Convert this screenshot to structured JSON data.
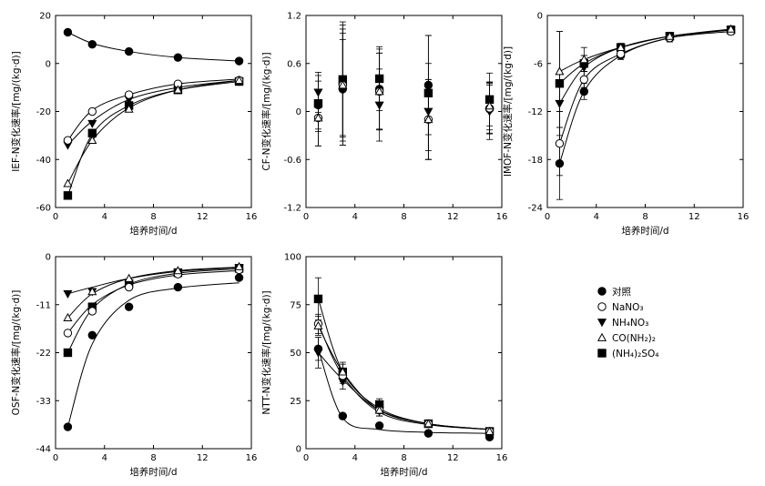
{
  "chart_data": [
    {
      "id": "p1",
      "type": "scatter",
      "xlabel": "培养时间/d",
      "ylabel": "IEF-N变化速率/[mg/(kg·d)]",
      "xlim": [
        0,
        16
      ],
      "ylim": [
        -60,
        20
      ],
      "xticks": [
        "0",
        "4",
        "8",
        "12",
        "16"
      ],
      "yticks": [
        "-60",
        "-40",
        "-20",
        "0",
        "20"
      ],
      "x": [
        1,
        3,
        6,
        10,
        15
      ],
      "series": [
        {
          "name": "对照",
          "marker": "circle-filled",
          "values": [
            13,
            8,
            5,
            2.5,
            1
          ]
        },
        {
          "name": "NaNO3",
          "marker": "circle-open",
          "values": [
            -32,
            -20,
            -13,
            -8.5,
            -7
          ]
        },
        {
          "name": "NH4NO3",
          "marker": "triangle-down-filled",
          "values": [
            -34,
            -25,
            -15,
            -10,
            -7.5
          ]
        },
        {
          "name": "CO(NH2)2",
          "marker": "triangle-up-open",
          "values": [
            -50,
            -32,
            -19,
            -11,
            -7
          ]
        },
        {
          "name": "(NH4)2SO4",
          "marker": "square-filled",
          "values": [
            -55,
            -29,
            -17.5,
            -11,
            -7.5
          ]
        }
      ],
      "fits": [
        {
          "values": [
            13,
            8.4,
            5,
            2.5,
            1
          ]
        },
        {
          "values": [
            -32,
            -19.5,
            -13,
            -8.5,
            -6.5
          ]
        },
        {
          "values": [
            -34,
            -24,
            -15,
            -10,
            -7
          ]
        },
        {
          "values": [
            -50,
            -32,
            -18.5,
            -11,
            -7
          ]
        },
        {
          "values": [
            -55,
            -29.5,
            -17.5,
            -11,
            -7.5
          ]
        }
      ]
    },
    {
      "id": "p2",
      "type": "scatter",
      "xlabel": "",
      "ylabel": "CF-N变化速率/[mg/(kg·d)]",
      "xlim": [
        0,
        16
      ],
      "ylim": [
        -1.2,
        1.2
      ],
      "xticks": [
        "0",
        "4",
        "8",
        "12",
        "16"
      ],
      "yticks": [
        "-1.2",
        "-0.6",
        "0",
        "0.6",
        "1.2"
      ],
      "x": [
        1,
        3,
        6,
        10,
        15
      ],
      "series": [
        {
          "name": "对照",
          "marker": "circle-filled",
          "values": [
            0.08,
            0.28,
            0.28,
            0.33,
            0.03
          ],
          "err": [
            0.3,
            0.7,
            0.5,
            0.62,
            0.3
          ]
        },
        {
          "name": "NaNO3",
          "marker": "circle-open",
          "values": [
            -0.08,
            0.33,
            0.25,
            -0.1,
            0.04
          ],
          "err": [
            0.35,
            0.7,
            0.48,
            0.5,
            0.32
          ]
        },
        {
          "name": "NH4NO3",
          "marker": "triangle-down-filled",
          "values": [
            0.24,
            0.3,
            0.08,
            0,
            0
          ],
          "err": [
            0.25,
            0.6,
            0.45,
            0.6,
            0.35
          ]
        },
        {
          "name": "CO(NH2)2",
          "marker": "triangle-up-open",
          "values": [
            -0.08,
            0.33,
            0.25,
            -0.1,
            0.07
          ],
          "err": [
            0.35,
            0.75,
            0.48,
            0.5,
            0.3
          ]
        },
        {
          "name": "(NH4)2SO4",
          "marker": "square-filled",
          "values": [
            0.1,
            0.4,
            0.41,
            0.23,
            0.15
          ],
          "err": [
            0.35,
            0.72,
            0.4,
            0.72,
            0.33
          ]
        }
      ]
    },
    {
      "id": "p3",
      "type": "scatter",
      "xlabel": "培养时间/d",
      "ylabel": "IMOF-N变化速率/[mg/(kg·d)]",
      "xlim": [
        0,
        16
      ],
      "ylim": [
        -24,
        0
      ],
      "xticks": [
        "0",
        "4",
        "8",
        "12",
        "16"
      ],
      "yticks": [
        "-24",
        "-18",
        "-12",
        "-6",
        "0"
      ],
      "x": [
        1,
        3,
        6,
        10,
        15
      ],
      "series": [
        {
          "name": "对照",
          "marker": "circle-filled",
          "values": [
            -18.5,
            -9.5,
            -5,
            -2.8,
            -1.8
          ],
          "err": [
            4.5,
            1,
            0.5,
            0.5,
            0.4
          ]
        },
        {
          "name": "NaNO3",
          "marker": "circle-open",
          "values": [
            -16,
            -8,
            -4.8,
            -2.8,
            -2
          ],
          "err": [
            4,
            1,
            0.5,
            0.5,
            0.4
          ]
        },
        {
          "name": "NH4NO3",
          "marker": "triangle-down-filled",
          "values": [
            -11,
            -6.5,
            -4,
            -2.6,
            -1.8
          ],
          "err": [
            3,
            1.5,
            0.5,
            0.5,
            0.4
          ]
        },
        {
          "name": "CO(NH2)2",
          "marker": "triangle-up-open",
          "values": [
            -7,
            -5.5,
            -4,
            -2.6,
            -1.7
          ],
          "err": [
            5,
            1.5,
            0.5,
            0.5,
            0.4
          ]
        },
        {
          "name": "(NH4)2SO4",
          "marker": "square-filled",
          "values": [
            -8.5,
            -6,
            -4,
            -2.6,
            -1.8
          ],
          "err": [
            6.5,
            1,
            0.5,
            0.5,
            0.4
          ]
        }
      ],
      "fits": [
        {
          "values": [
            -18.5,
            -9.5,
            -5,
            -2.8,
            -1.8
          ]
        },
        {
          "values": [
            -16,
            -8,
            -4.8,
            -2.8,
            -2
          ]
        },
        {
          "values": [
            -11,
            -6.5,
            -4,
            -2.6,
            -1.8
          ]
        },
        {
          "values": [
            -7,
            -5.5,
            -4,
            -2.6,
            -1.7
          ]
        },
        {
          "values": [
            -8.5,
            -6,
            -4,
            -2.6,
            -1.8
          ]
        }
      ]
    },
    {
      "id": "p4",
      "type": "scatter",
      "xlabel": "培养时间/d",
      "ylabel": "OSF-N变化速率/[mg/(kg·d)]",
      "xlim": [
        0,
        16
      ],
      "ylim": [
        -44,
        0
      ],
      "xticks": [
        "0",
        "4",
        "8",
        "12",
        "16"
      ],
      "yticks": [
        "-44",
        "-33",
        "-22",
        "-11",
        "0"
      ],
      "x": [
        1,
        3,
        6,
        10,
        15
      ],
      "series": [
        {
          "name": "对照",
          "marker": "circle-filled",
          "values": [
            -39,
            -18,
            -11.5,
            -7,
            -4.8
          ]
        },
        {
          "name": "NaNO3",
          "marker": "circle-open",
          "values": [
            -17.5,
            -12.5,
            -7,
            -4,
            -3
          ]
        },
        {
          "name": "NH4NO3",
          "marker": "triangle-down-filled",
          "values": [
            -8.5,
            -8,
            -6,
            -3.5,
            -2.5
          ]
        },
        {
          "name": "CO(NH2)2",
          "marker": "triangle-up-open",
          "values": [
            -14,
            -8,
            -5,
            -3.2,
            -2.3
          ]
        },
        {
          "name": "(NH4)2SO4",
          "marker": "square-filled",
          "values": [
            -22,
            -11.5,
            -6.2,
            -3.7,
            -2.7
          ]
        }
      ],
      "fits": [
        {
          "values": [
            -39,
            -20,
            -10,
            -7.2,
            -6
          ]
        },
        {
          "values": [
            -17.5,
            -11,
            -6.5,
            -4.2,
            -3.2
          ]
        },
        {
          "values": [
            -8.5,
            -7,
            -5,
            -3.4,
            -2.5
          ]
        },
        {
          "values": [
            -14,
            -8.5,
            -5,
            -3.2,
            -2.4
          ]
        },
        {
          "values": [
            -22,
            -12,
            -6.3,
            -3.8,
            -2.8
          ]
        }
      ]
    },
    {
      "id": "p5",
      "type": "scatter",
      "xlabel": "培养时间/d",
      "ylabel": "NTT-N变化速率/[mg/(kg·d)]",
      "xlim": [
        0,
        16
      ],
      "ylim": [
        0,
        100
      ],
      "xticks": [
        "0",
        "4",
        "8",
        "12",
        "16"
      ],
      "yticks": [
        "0",
        "25",
        "50",
        "75",
        "100"
      ],
      "x": [
        1,
        3,
        6,
        10,
        15
      ],
      "series": [
        {
          "name": "对照",
          "marker": "circle-filled",
          "values": [
            52,
            17,
            12,
            8,
            6
          ],
          "err": [
            6,
            1,
            1,
            1,
            1
          ]
        },
        {
          "name": "NaNO3",
          "marker": "circle-open",
          "values": [
            65,
            38,
            20,
            13,
            9
          ],
          "err": [
            5,
            4,
            3,
            1.5,
            1
          ]
        },
        {
          "name": "NH4NO3",
          "marker": "triangle-down-filled",
          "values": [
            50,
            35,
            20,
            13,
            9
          ],
          "err": [
            8,
            4,
            3,
            1.5,
            1
          ]
        },
        {
          "name": "CO(NH2)2",
          "marker": "triangle-up-open",
          "values": [
            64,
            40,
            20,
            13,
            9
          ],
          "err": [
            5,
            4,
            3,
            1.5,
            1
          ]
        },
        {
          "name": "(NH4)2SO4",
          "marker": "square-filled",
          "values": [
            78,
            40,
            23,
            13,
            9
          ],
          "err": [
            11,
            5,
            3,
            1.5,
            1
          ]
        }
      ],
      "fits": [
        {
          "values": [
            52,
            16,
            10,
            8.5,
            8
          ]
        },
        {
          "values": [
            65,
            38,
            19,
            12.5,
            10
          ]
        },
        {
          "values": [
            50,
            36,
            20,
            13,
            10
          ]
        },
        {
          "values": [
            64,
            40,
            20,
            13,
            10
          ]
        },
        {
          "values": [
            78,
            40,
            21,
            13,
            10
          ]
        }
      ]
    }
  ],
  "legend": {
    "placement": "bottom-right",
    "items": [
      {
        "label": "对照",
        "marker": "circle-filled"
      },
      {
        "label": "NaNO₃",
        "marker": "circle-open"
      },
      {
        "label": "NH₄NO₃",
        "marker": "triangle-down-filled"
      },
      {
        "label": "CO(NH₂)₂",
        "marker": "triangle-up-open"
      },
      {
        "label": "(NH₄)₂SO₄",
        "marker": "square-filled"
      }
    ]
  },
  "colors": {
    "ink": "#000000",
    "background": "#ffffff"
  }
}
